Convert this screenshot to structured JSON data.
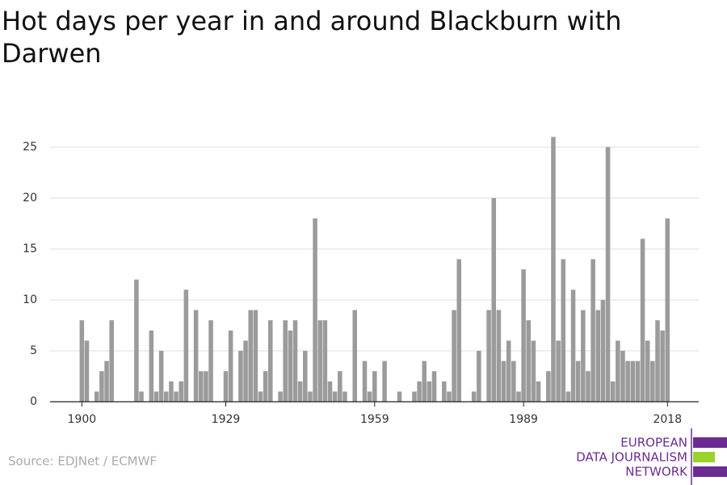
{
  "chart_data": {
    "type": "bar",
    "title": "Hot days per year in and around Blackburn with Darwen",
    "source": "Source: EDJNet / ECMWF",
    "logo": [
      "EUROPEAN",
      "DATA JOURNALISM",
      "NETWORK"
    ],
    "color": "#9b9b9b",
    "x": [
      1900,
      1901,
      1902,
      1903,
      1904,
      1905,
      1906,
      1907,
      1908,
      1909,
      1910,
      1911,
      1912,
      1913,
      1914,
      1915,
      1916,
      1917,
      1918,
      1919,
      1920,
      1921,
      1922,
      1923,
      1924,
      1925,
      1926,
      1927,
      1928,
      1929,
      1930,
      1931,
      1932,
      1933,
      1934,
      1935,
      1936,
      1937,
      1938,
      1939,
      1940,
      1941,
      1942,
      1943,
      1944,
      1945,
      1946,
      1947,
      1948,
      1949,
      1950,
      1951,
      1952,
      1953,
      1954,
      1955,
      1956,
      1957,
      1958,
      1959,
      1960,
      1961,
      1962,
      1963,
      1964,
      1965,
      1966,
      1967,
      1968,
      1969,
      1970,
      1971,
      1972,
      1973,
      1974,
      1975,
      1976,
      1977,
      1978,
      1979,
      1980,
      1981,
      1982,
      1983,
      1984,
      1985,
      1986,
      1987,
      1988,
      1989,
      1990,
      1991,
      1992,
      1993,
      1994,
      1995,
      1996,
      1997,
      1998,
      1999,
      2000,
      2001,
      2002,
      2003,
      2004,
      2005,
      2006,
      2007,
      2008,
      2009,
      2010,
      2011,
      2012,
      2013,
      2014,
      2015,
      2016,
      2017,
      2018
    ],
    "values": [
      8,
      6,
      0,
      1,
      3,
      4,
      8,
      0,
      0,
      0,
      0,
      12,
      1,
      0,
      7,
      1,
      5,
      1,
      2,
      1,
      2,
      11,
      0,
      9,
      3,
      3,
      8,
      0,
      0,
      3,
      7,
      0,
      5,
      6,
      9,
      9,
      1,
      3,
      8,
      0,
      1,
      8,
      7,
      8,
      2,
      5,
      1,
      18,
      8,
      8,
      2,
      1,
      3,
      1,
      0,
      9,
      0,
      4,
      1,
      3,
      0,
      4,
      0,
      0,
      1,
      0,
      0,
      1,
      2,
      4,
      2,
      3,
      0,
      2,
      1,
      9,
      14,
      0,
      0,
      1,
      5,
      0,
      9,
      20,
      9,
      4,
      6,
      4,
      1,
      13,
      8,
      6,
      2,
      0,
      3,
      26,
      6,
      14,
      1,
      11,
      4,
      9,
      3,
      14,
      9,
      10,
      25,
      2,
      6,
      5,
      4,
      4,
      4,
      16,
      6,
      4,
      8,
      7,
      18
    ],
    "xlim": [
      1893.6,
      2024.3
    ],
    "xticks": [
      1900,
      1929,
      1959,
      1989,
      2018
    ],
    "ylim": [
      0,
      26
    ],
    "yticks": [
      0,
      5,
      10,
      15,
      20,
      25
    ],
    "grid": true
  }
}
